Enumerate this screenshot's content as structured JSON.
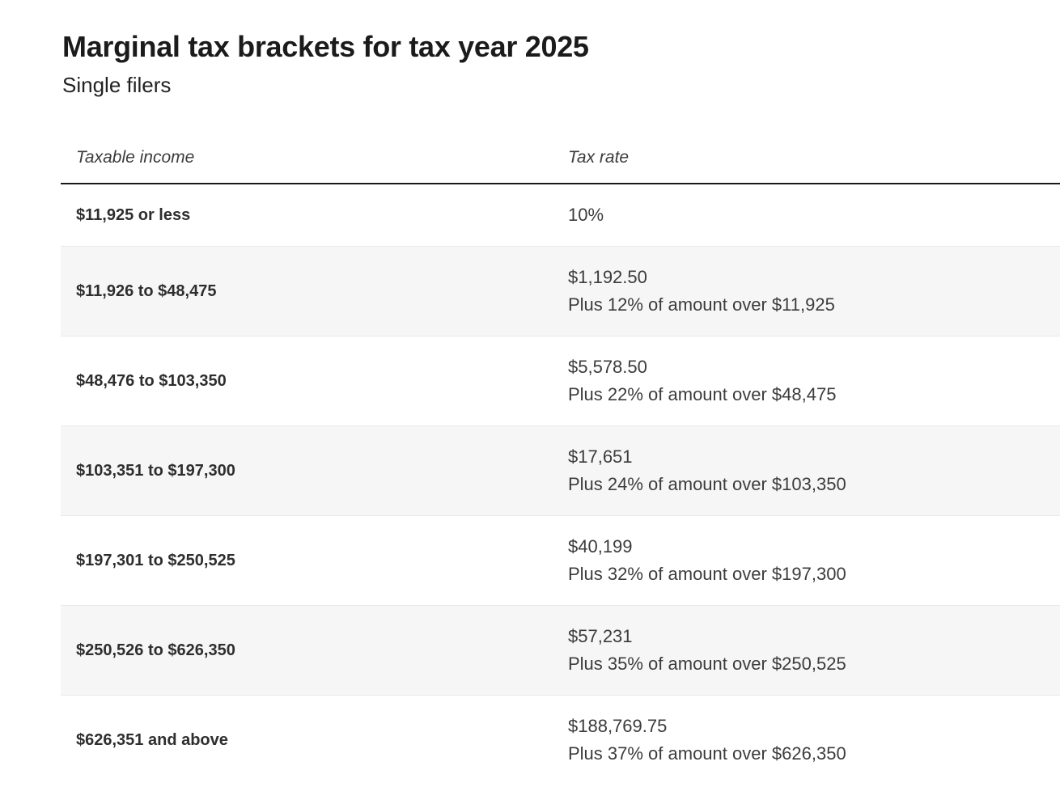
{
  "page": {
    "title": "Marginal tax brackets for tax year 2025",
    "subtitle": "Single filers"
  },
  "table": {
    "columns": [
      "Taxable income",
      "Tax rate"
    ],
    "rows": [
      {
        "income": "$11,925 or less",
        "rate": "10%",
        "rate_detail": ""
      },
      {
        "income": "$11,926 to $48,475",
        "rate": "$1,192.50",
        "rate_detail": "Plus 12% of amount over $11,925"
      },
      {
        "income": "$48,476 to $103,350",
        "rate": "$5,578.50",
        "rate_detail": "Plus 22% of amount over $48,475"
      },
      {
        "income": "$103,351 to $197,300",
        "rate": "$17,651",
        "rate_detail": "Plus 24% of amount over $103,350"
      },
      {
        "income": "$197,301 to $250,525",
        "rate": "$40,199",
        "rate_detail": "Plus 32% of amount over $197,300"
      },
      {
        "income": "$250,526 to $626,350",
        "rate": "$57,231",
        "rate_detail": "Plus 35% of amount over $250,525"
      },
      {
        "income": "$626,351 and above",
        "rate": "$188,769.75",
        "rate_detail": "Plus 37% of amount over $626,350"
      }
    ]
  },
  "colors": {
    "title_text": "#1b1b1b",
    "body_text": "#3c3c3c",
    "income_text": "#2e2e2e",
    "header_text": "#3b3b3b",
    "row_alt_background": "#f6f6f6",
    "row_divider": "#e9e9e9",
    "header_rule": "#191919",
    "page_background": "#ffffff"
  }
}
